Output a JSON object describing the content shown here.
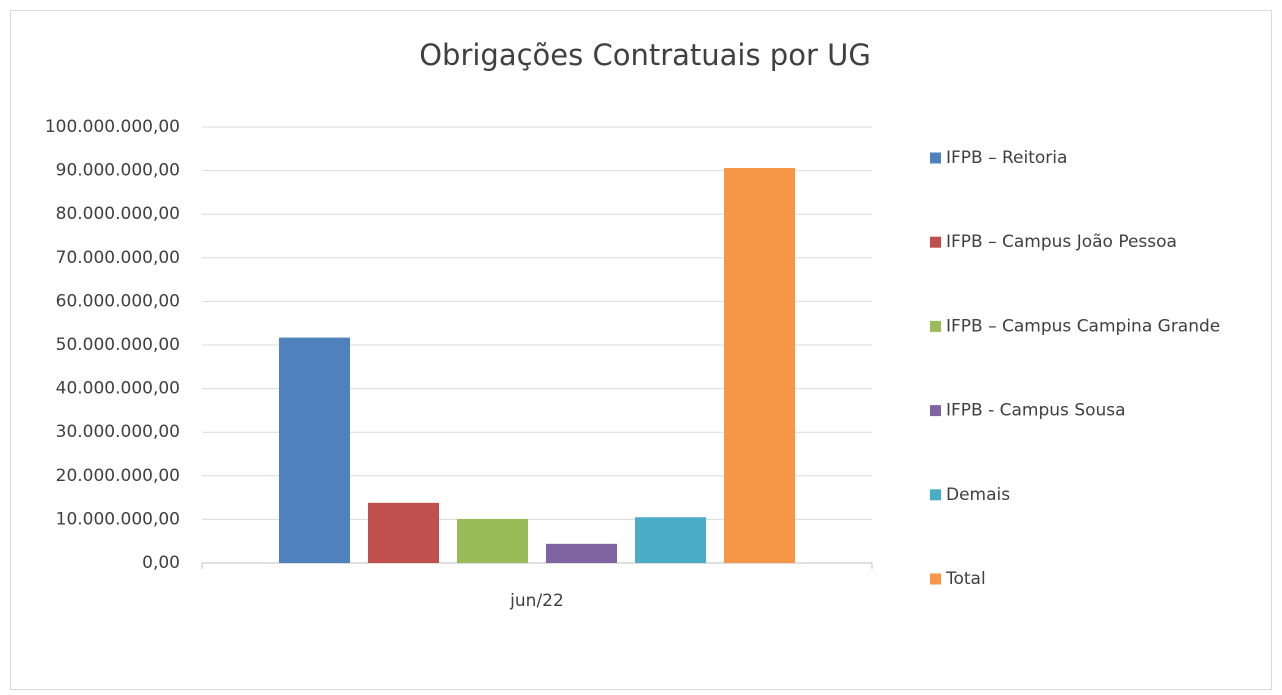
{
  "chart_data": {
    "type": "bar",
    "title": "Obrigações Contratuais por UG",
    "categories": [
      "jun/22"
    ],
    "series": [
      {
        "name": "IFPB – Reitoria",
        "color": "#4f81bd",
        "values": [
          51700000
        ]
      },
      {
        "name": "IFPB – Campus João Pessoa",
        "color": "#c0504d",
        "values": [
          13800000
        ]
      },
      {
        "name": "IFPB – Campus Campina Grande",
        "color": "#9bbb59",
        "values": [
          10100000
        ]
      },
      {
        "name": "IFPB - Campus Sousa",
        "color": "#8064a2",
        "values": [
          4400000
        ]
      },
      {
        "name": "Demais",
        "color": "#4bacc6",
        "values": [
          10500000
        ]
      },
      {
        "name": "Total",
        "color": "#f79646",
        "values": [
          90600000
        ]
      }
    ],
    "ylim": [
      0,
      100000000
    ],
    "yticks": [
      {
        "value": 0,
        "label": "0,00"
      },
      {
        "value": 10000000,
        "label": "10.000.000,00"
      },
      {
        "value": 20000000,
        "label": "20.000.000,00"
      },
      {
        "value": 30000000,
        "label": "30.000.000,00"
      },
      {
        "value": 40000000,
        "label": "40.000.000,00"
      },
      {
        "value": 50000000,
        "label": "50.000.000,00"
      },
      {
        "value": 60000000,
        "label": "60.000.000,00"
      },
      {
        "value": 70000000,
        "label": "70.000.000,00"
      },
      {
        "value": 80000000,
        "label": "80.000.000,00"
      },
      {
        "value": 90000000,
        "label": "90.000.000,00"
      },
      {
        "value": 100000000,
        "label": "100.000.000,00"
      }
    ],
    "grid": true,
    "legend": "right"
  }
}
